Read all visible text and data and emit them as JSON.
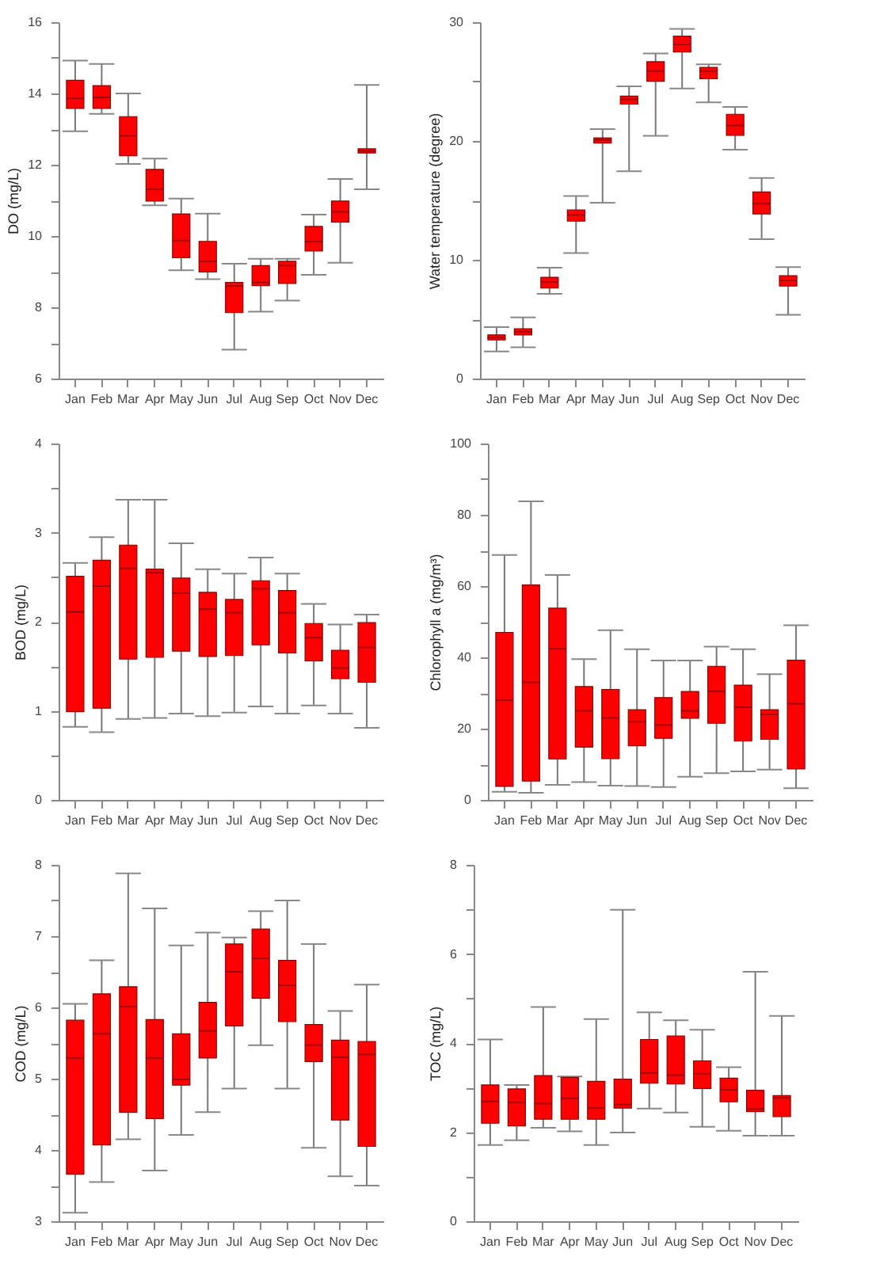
{
  "chart_data": [
    {
      "type": "box",
      "ylabel": "DO (mg/L)",
      "categories": [
        "Jan",
        "Feb",
        "Mar",
        "Apr",
        "May",
        "Jun",
        "Jul",
        "Aug",
        "Sep",
        "Oct",
        "Nov",
        "Dec"
      ],
      "ylim": [
        6,
        16
      ],
      "yticks": [
        6,
        {
          "value": 7,
          "label": null
        },
        8,
        {
          "value": 9,
          "label": null
        },
        10,
        {
          "value": 11,
          "label": null
        },
        12,
        {
          "value": 13,
          "label": null
        },
        14,
        {
          "value": 15,
          "label": null
        },
        16
      ],
      "series": [
        {
          "color": "#ff0000",
          "boxes": [
            {
              "low": 12.94,
              "q1": 13.58,
              "median": 13.86,
              "q3": 14.37,
              "high": 14.92
            },
            {
              "low": 13.43,
              "q1": 13.58,
              "median": 13.89,
              "q3": 14.22,
              "high": 14.83
            },
            {
              "low": 12.02,
              "q1": 12.25,
              "median": 12.81,
              "q3": 13.35,
              "high": 14.0
            },
            {
              "low": 10.86,
              "q1": 10.98,
              "median": 11.31,
              "q3": 11.87,
              "high": 12.17
            },
            {
              "low": 9.04,
              "q1": 9.39,
              "median": 9.87,
              "q3": 10.62,
              "high": 11.05
            },
            {
              "low": 8.79,
              "q1": 8.99,
              "median": 9.29,
              "q3": 9.85,
              "high": 10.63
            },
            {
              "low": 6.81,
              "q1": 7.85,
              "median": 8.6,
              "q3": 8.7,
              "high": 9.22
            },
            {
              "low": 7.88,
              "q1": 8.61,
              "median": 8.7,
              "q3": 9.17,
              "high": 9.36
            },
            {
              "low": 8.19,
              "q1": 8.67,
              "median": 9.17,
              "q3": 9.29,
              "high": 9.36
            },
            {
              "low": 8.91,
              "q1": 9.58,
              "median": 9.84,
              "q3": 10.27,
              "high": 10.6
            },
            {
              "low": 9.25,
              "q1": 10.39,
              "median": 10.68,
              "q3": 10.98,
              "high": 11.6
            },
            {
              "low": 11.31,
              "q1": 12.33,
              "median": 12.39,
              "q3": 12.45,
              "high": 14.24
            }
          ]
        }
      ]
    },
    {
      "type": "box",
      "ylabel": "Water temperature (degree)",
      "categories": [
        "Jan",
        "Feb",
        "Mar",
        "Apr",
        "May",
        "Jun",
        "Jul",
        "Aug",
        "Sep",
        "Oct",
        "Nov",
        "Dec"
      ],
      "ylim": [
        0,
        30
      ],
      "yticks": [
        0,
        {
          "value": 5,
          "label": null
        },
        10,
        {
          "value": 15,
          "label": null
        },
        20,
        {
          "value": 25,
          "label": null
        },
        30
      ],
      "series": [
        {
          "color": "#ff0000",
          "boxes": [
            {
              "low": 2.29,
              "q1": 3.25,
              "median": 3.46,
              "q3": 3.68,
              "high": 4.33
            },
            {
              "low": 2.64,
              "q1": 3.68,
              "median": 3.94,
              "q3": 4.2,
              "high": 5.15
            },
            {
              "low": 7.14,
              "q1": 7.62,
              "median": 8.14,
              "q3": 8.53,
              "high": 9.33
            },
            {
              "low": 10.56,
              "q1": 13.25,
              "median": 13.77,
              "q3": 14.2,
              "high": 15.37
            },
            {
              "low": 14.8,
              "q1": 19.83,
              "median": 20.09,
              "q3": 20.26,
              "high": 21.0
            },
            {
              "low": 17.45,
              "q1": 23.1,
              "median": 23.5,
              "q3": 23.77,
              "high": 24.6
            },
            {
              "low": 20.43,
              "q1": 25.02,
              "median": 25.89,
              "q3": 26.67,
              "high": 27.36
            },
            {
              "low": 24.42,
              "q1": 27.49,
              "median": 28.14,
              "q3": 28.83,
              "high": 29.44
            },
            {
              "low": 23.25,
              "q1": 25.24,
              "median": 25.89,
              "q3": 26.19,
              "high": 26.45
            },
            {
              "low": 19.26,
              "q1": 20.48,
              "median": 21.3,
              "q3": 22.25,
              "high": 22.86
            },
            {
              "low": 11.73,
              "q1": 13.86,
              "median": 14.72,
              "q3": 15.71,
              "high": 16.88
            },
            {
              "low": 5.37,
              "q1": 7.79,
              "median": 8.27,
              "q3": 8.66,
              "high": 9.39
            }
          ]
        }
      ]
    },
    {
      "type": "box",
      "ylabel": "BOD (mg/L)",
      "categories": [
        "Jan",
        "Feb",
        "Mar",
        "Apr",
        "May",
        "Jun",
        "Jul",
        "Aug",
        "Sep",
        "Oct",
        "Nov",
        "Dec"
      ],
      "ylim": [
        0,
        4
      ],
      "yticks": [
        0,
        {
          "value": 0.5,
          "label": null
        },
        1,
        {
          "value": 1.5,
          "label": null
        },
        2,
        {
          "value": 2.5,
          "label": null
        },
        3,
        {
          "value": 3.5,
          "label": null
        },
        4
      ],
      "series": [
        {
          "color": "#ff0000",
          "boxes": [
            {
              "low": 0.82,
              "q1": 0.99,
              "median": 2.11,
              "q3": 2.51,
              "high": 2.66
            },
            {
              "low": 0.76,
              "q1": 1.03,
              "median": 2.4,
              "q3": 2.69,
              "high": 2.95
            },
            {
              "low": 0.91,
              "q1": 1.58,
              "median": 2.6,
              "q3": 2.86,
              "high": 3.37
            },
            {
              "low": 0.92,
              "q1": 1.6,
              "median": 2.55,
              "q3": 2.59,
              "high": 3.37
            },
            {
              "low": 0.97,
              "q1": 1.67,
              "median": 2.32,
              "q3": 2.49,
              "high": 2.88
            },
            {
              "low": 0.94,
              "q1": 1.61,
              "median": 2.14,
              "q3": 2.33,
              "high": 2.59
            },
            {
              "low": 0.98,
              "q1": 1.62,
              "median": 2.1,
              "q3": 2.25,
              "high": 2.54
            },
            {
              "low": 1.05,
              "q1": 1.74,
              "median": 2.37,
              "q3": 2.46,
              "high": 2.72
            },
            {
              "low": 0.97,
              "q1": 1.65,
              "median": 2.1,
              "q3": 2.35,
              "high": 2.54
            },
            {
              "low": 1.06,
              "q1": 1.56,
              "median": 1.82,
              "q3": 1.98,
              "high": 2.2
            },
            {
              "low": 0.97,
              "q1": 1.36,
              "median": 1.48,
              "q3": 1.68,
              "high": 1.97
            },
            {
              "low": 0.81,
              "q1": 1.32,
              "median": 1.71,
              "q3": 1.99,
              "high": 2.08
            }
          ]
        }
      ]
    },
    {
      "type": "box",
      "ylabel": "Chlorophyll a (mg/m³)",
      "categories": [
        "Jan",
        "Feb",
        "Mar",
        "Apr",
        "May",
        "Jun",
        "Jul",
        "Aug",
        "Sep",
        "Oct",
        "Nov",
        "Dec"
      ],
      "ylim": [
        0,
        100
      ],
      "yticks": [
        0,
        {
          "value": 10,
          "label": null
        },
        20,
        {
          "value": 30,
          "label": null
        },
        40,
        {
          "value": 50,
          "label": null
        },
        60,
        {
          "value": 70,
          "label": null
        },
        80,
        {
          "value": 90,
          "label": null
        },
        100
      ],
      "series": [
        {
          "color": "#ff0000",
          "boxes": [
            {
              "low": 2.3,
              "q1": 3.8,
              "median": 28,
              "q3": 47,
              "high": 68.7
            },
            {
              "low": 2,
              "q1": 5.3,
              "median": 33,
              "q3": 60.3,
              "high": 83.8
            },
            {
              "low": 4.2,
              "q1": 11.5,
              "median": 42.4,
              "q3": 53.8,
              "high": 63.1
            },
            {
              "low": 5,
              "q1": 14.8,
              "median": 25,
              "q3": 31.8,
              "high": 39.5
            },
            {
              "low": 4,
              "q1": 11.6,
              "median": 23,
              "q3": 31,
              "high": 47.6
            },
            {
              "low": 3.9,
              "q1": 15.2,
              "median": 21.9,
              "q3": 25.3,
              "high": 42.3
            },
            {
              "low": 3.6,
              "q1": 17.3,
              "median": 21,
              "q3": 28.7,
              "high": 39.1
            },
            {
              "low": 6.5,
              "q1": 22.9,
              "median": 25,
              "q3": 30.4,
              "high": 39.1
            },
            {
              "low": 7.5,
              "q1": 21.5,
              "median": 30.5,
              "q3": 37.5,
              "high": 43
            },
            {
              "low": 8,
              "q1": 16.5,
              "median": 26,
              "q3": 32.2,
              "high": 42.3
            },
            {
              "low": 8.5,
              "q1": 17,
              "median": 24,
              "q3": 25.3,
              "high": 35.3
            },
            {
              "low": 3.3,
              "q1": 8.7,
              "median": 27,
              "q3": 39.2,
              "high": 49
            }
          ]
        }
      ]
    },
    {
      "type": "box",
      "ylabel": "COD (mg/L)",
      "categories": [
        "Jan",
        "Feb",
        "Mar",
        "Apr",
        "May",
        "Jun",
        "Jul",
        "Aug",
        "Sep",
        "Oct",
        "Nov",
        "Dec"
      ],
      "ylim": [
        3,
        8
      ],
      "yticks": [
        3,
        {
          "value": 3.5,
          "label": null
        },
        4,
        {
          "value": 4.5,
          "label": null
        },
        5,
        {
          "value": 5.5,
          "label": null
        },
        6,
        {
          "value": 6.5,
          "label": null
        },
        7,
        {
          "value": 7.5,
          "label": null
        },
        8
      ],
      "series": [
        {
          "color": "#ff0000",
          "boxes": [
            {
              "low": 3.12,
              "q1": 3.66,
              "median": 5.29,
              "q3": 5.82,
              "high": 6.05
            },
            {
              "low": 3.55,
              "q1": 4.07,
              "median": 5.63,
              "q3": 6.19,
              "high": 6.66
            },
            {
              "low": 4.15,
              "q1": 4.53,
              "median": 6.01,
              "q3": 6.29,
              "high": 7.88
            },
            {
              "low": 3.71,
              "q1": 4.44,
              "median": 5.29,
              "q3": 5.83,
              "high": 7.39
            },
            {
              "low": 4.21,
              "q1": 4.91,
              "median": 4.99,
              "q3": 5.63,
              "high": 6.87
            },
            {
              "low": 4.53,
              "q1": 5.29,
              "median": 5.67,
              "q3": 6.07,
              "high": 7.05
            },
            {
              "low": 4.86,
              "q1": 5.74,
              "median": 6.5,
              "q3": 6.89,
              "high": 6.98
            },
            {
              "low": 5.47,
              "q1": 6.13,
              "median": 6.69,
              "q3": 7.1,
              "high": 7.35
            },
            {
              "low": 4.86,
              "q1": 5.8,
              "median": 6.31,
              "q3": 6.66,
              "high": 7.5
            },
            {
              "low": 4.03,
              "q1": 5.24,
              "median": 5.47,
              "q3": 5.76,
              "high": 6.89
            },
            {
              "low": 3.63,
              "q1": 4.42,
              "median": 5.3,
              "q3": 5.54,
              "high": 5.95
            },
            {
              "low": 3.5,
              "q1": 4.05,
              "median": 5.34,
              "q3": 5.52,
              "high": 6.32
            }
          ]
        }
      ]
    },
    {
      "type": "box",
      "ylabel": "TOC (mg/L)",
      "categories": [
        "Jan",
        "Feb",
        "Mar",
        "Apr",
        "May",
        "Jun",
        "Jul",
        "Aug",
        "Sep",
        "Oct",
        "Nov",
        "Dec"
      ],
      "ylim": [
        0,
        8
      ],
      "yticks": [
        0,
        {
          "value": 1,
          "label": null
        },
        2,
        {
          "value": 3,
          "label": null
        },
        4,
        {
          "value": 5,
          "label": null
        },
        6,
        {
          "value": 7,
          "label": null
        },
        8
      ],
      "series": [
        {
          "color": "#ff0000",
          "boxes": [
            {
              "low": 1.71,
              "q1": 2.2,
              "median": 2.69,
              "q3": 3.06,
              "high": 4.08
            },
            {
              "low": 1.82,
              "q1": 2.14,
              "median": 2.67,
              "q3": 2.97,
              "high": 3.06
            },
            {
              "low": 2.1,
              "q1": 2.29,
              "median": 2.64,
              "q3": 3.27,
              "high": 4.81
            },
            {
              "low": 2.02,
              "q1": 2.29,
              "median": 2.76,
              "q3": 3.23,
              "high": 3.25
            },
            {
              "low": 1.71,
              "q1": 2.29,
              "median": 2.54,
              "q3": 3.14,
              "high": 4.54
            },
            {
              "low": 1.99,
              "q1": 2.54,
              "median": 2.62,
              "q3": 3.19,
              "high": 6.99
            },
            {
              "low": 2.53,
              "q1": 3.1,
              "median": 3.33,
              "q3": 4.08,
              "high": 4.69
            },
            {
              "low": 2.44,
              "q1": 3.08,
              "median": 3.28,
              "q3": 4.16,
              "high": 4.51
            },
            {
              "low": 2.12,
              "q1": 2.98,
              "median": 3.31,
              "q3": 3.6,
              "high": 4.3
            },
            {
              "low": 2.03,
              "q1": 2.68,
              "median": 2.95,
              "q3": 3.21,
              "high": 3.46
            },
            {
              "low": 1.92,
              "q1": 2.46,
              "median": 2.52,
              "q3": 2.94,
              "high": 5.6
            },
            {
              "low": 1.92,
              "q1": 2.35,
              "median": 2.77,
              "q3": 2.82,
              "high": 4.61
            }
          ]
        }
      ]
    }
  ]
}
